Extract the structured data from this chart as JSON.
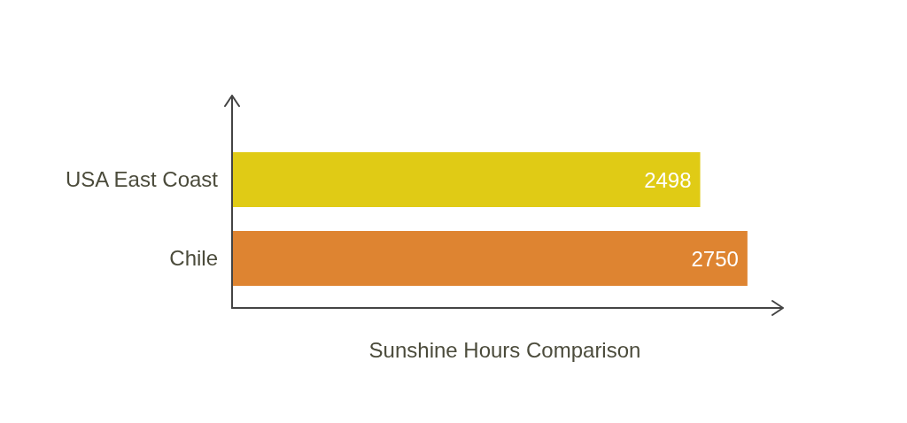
{
  "chart_data": {
    "type": "bar",
    "orientation": "horizontal",
    "xlabel": "Sunshine Hours Comparison",
    "categories": [
      "USA East Coast",
      "Chile"
    ],
    "values": [
      2498,
      2750
    ],
    "colors": [
      "#e0cb15",
      "#de8431"
    ],
    "data_labels": true
  }
}
